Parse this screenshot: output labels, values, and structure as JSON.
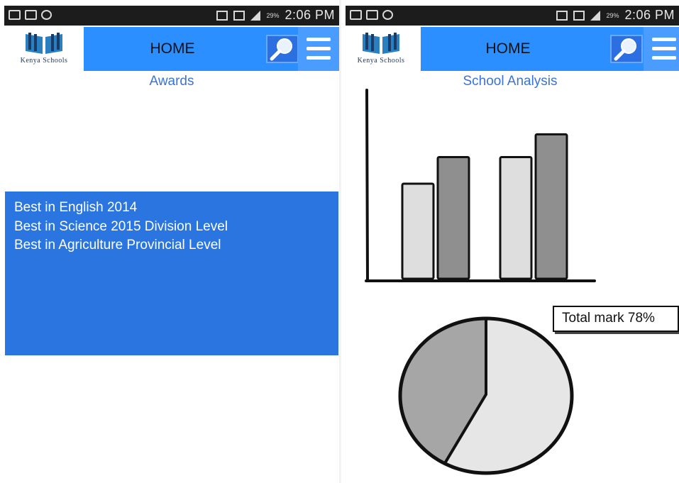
{
  "status_bar": {
    "time": "2:06 PM",
    "battery": "29%"
  },
  "app_bar": {
    "logo_text": "Kenya Schools",
    "title": "HOME",
    "icons": [
      "search-icon",
      "menu-icon"
    ],
    "colors": {
      "bar": "#2b8fff",
      "awards_panel": "#2a75e0",
      "heading": "#3a73d9"
    }
  },
  "screens": {
    "awards": {
      "heading": "Awards",
      "items": [
        "Best in English 2014",
        "Best in Science 2015 Division Level",
        "Best in Agriculture Provincial Level"
      ]
    },
    "analysis": {
      "heading": "School Analysis",
      "pie_label": "Total mark 78%"
    }
  },
  "chart_data": [
    {
      "type": "bar",
      "title": "",
      "xlabel": "",
      "ylabel": "",
      "categories": [
        "",
        ""
      ],
      "series": [
        {
          "values": [
            50,
            64
          ],
          "color": "#dedede"
        },
        {
          "values": [
            64,
            76
          ],
          "color": "#8f8f8f"
        }
      ],
      "ylim": [
        0,
        100
      ],
      "grid": false
    },
    {
      "type": "pie",
      "slices": [
        {
          "value": 58,
          "color": "#e6e6e6"
        },
        {
          "value": 42,
          "color": "#a6a6a6"
        }
      ]
    }
  ]
}
